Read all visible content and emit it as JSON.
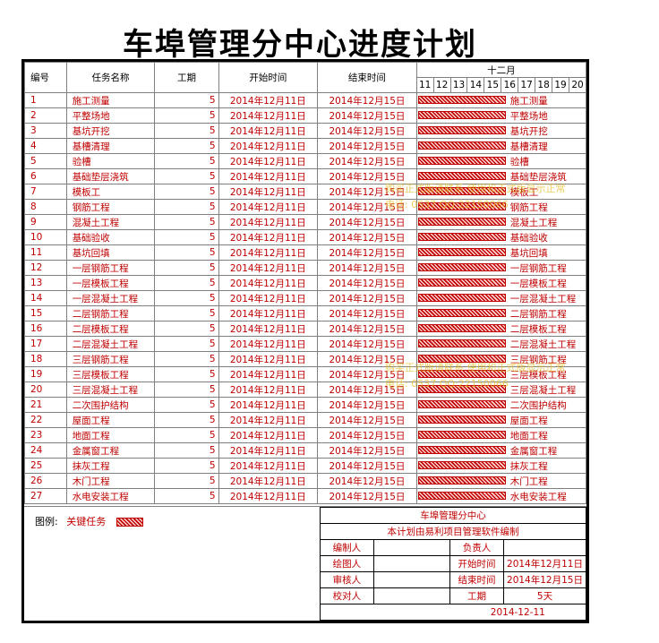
{
  "title": "车埠管理分中心进度计划",
  "table": {
    "headers": {
      "no": "编号",
      "name": "任务名称",
      "duration": "工期",
      "start": "开始时间",
      "end": "结束时间",
      "month": "十二月",
      "days": [
        "11",
        "12",
        "13",
        "14",
        "15",
        "16",
        "17",
        "18",
        "19",
        "20"
      ]
    },
    "rows": [
      {
        "no": "1",
        "name": "施工测量",
        "duration": "5",
        "start": "2014年12月11日",
        "end": "2014年12月15日",
        "label": "施工测量"
      },
      {
        "no": "2",
        "name": "平整场地",
        "duration": "5",
        "start": "2014年12月11日",
        "end": "2014年12月15日",
        "label": "平整场地"
      },
      {
        "no": "3",
        "name": "基坑开挖",
        "duration": "5",
        "start": "2014年12月11日",
        "end": "2014年12月15日",
        "label": "基坑开挖"
      },
      {
        "no": "4",
        "name": "基槽清理",
        "duration": "5",
        "start": "2014年12月11日",
        "end": "2014年12月15日",
        "label": "基槽清理"
      },
      {
        "no": "5",
        "name": "验槽",
        "duration": "5",
        "start": "2014年12月11日",
        "end": "2014年12月15日",
        "label": "验槽"
      },
      {
        "no": "6",
        "name": "基础垫层浇筑",
        "duration": "5",
        "start": "2014年12月11日",
        "end": "2014年12月15日",
        "label": "基础垫层浇筑"
      },
      {
        "no": "7",
        "name": "模板工",
        "duration": "5",
        "start": "2014年12月11日",
        "end": "2014年12月15日",
        "label": "模板工"
      },
      {
        "no": "8",
        "name": "钢筋工程",
        "duration": "5",
        "start": "2014年12月11日",
        "end": "2014年12月15日",
        "label": "钢筋工程"
      },
      {
        "no": "9",
        "name": "混凝土工程",
        "duration": "5",
        "start": "2014年12月11日",
        "end": "2014年12月15日",
        "label": "混凝土工程"
      },
      {
        "no": "10",
        "name": "基础验收",
        "duration": "5",
        "start": "2014年12月11日",
        "end": "2014年12月15日",
        "label": "基础验收"
      },
      {
        "no": "11",
        "name": "基坑回填",
        "duration": "5",
        "start": "2014年12月11日",
        "end": "2014年12月15日",
        "label": "基坑回填"
      },
      {
        "no": "12",
        "name": "一层钢筋工程",
        "duration": "5",
        "start": "2014年12月11日",
        "end": "2014年12月15日",
        "label": "一层钢筋工程"
      },
      {
        "no": "13",
        "name": "一层模板工程",
        "duration": "5",
        "start": "2014年12月11日",
        "end": "2014年12月15日",
        "label": "一层模板工程"
      },
      {
        "no": "14",
        "name": "一层混凝土工程",
        "duration": "5",
        "start": "2014年12月11日",
        "end": "2014年12月15日",
        "label": "一层混凝土工程"
      },
      {
        "no": "15",
        "name": "二层钢筋工程",
        "duration": "5",
        "start": "2014年12月11日",
        "end": "2014年12月15日",
        "label": "二层钢筋工程"
      },
      {
        "no": "16",
        "name": "二层模板工程",
        "duration": "5",
        "start": "2014年12月11日",
        "end": "2014年12月15日",
        "label": "二层模板工程"
      },
      {
        "no": "17",
        "name": "二层混凝土工程",
        "duration": "5",
        "start": "2014年12月11日",
        "end": "2014年12月15日",
        "label": "二层混凝土工程"
      },
      {
        "no": "18",
        "name": "三层钢筋工程",
        "duration": "5",
        "start": "2014年12月11日",
        "end": "2014年12月15日",
        "label": "三层钢筋工程"
      },
      {
        "no": "19",
        "name": "三层模板工程",
        "duration": "5",
        "start": "2014年12月11日",
        "end": "2014年12月15日",
        "label": "三层模板工程"
      },
      {
        "no": "20",
        "name": "三层混凝土工程",
        "duration": "5",
        "start": "2014年12月11日",
        "end": "2014年12月15日",
        "label": "三层混凝土工程"
      },
      {
        "no": "21",
        "name": "二次围护结构",
        "duration": "5",
        "start": "2014年12月11日",
        "end": "2014年12月15日",
        "label": "二次围护结构"
      },
      {
        "no": "22",
        "name": "屋面工程",
        "duration": "5",
        "start": "2014年12月11日",
        "end": "2014年12月15日",
        "label": "屋面工程"
      },
      {
        "no": "23",
        "name": "地面工程",
        "duration": "5",
        "start": "2014年12月11日",
        "end": "2014年12月15日",
        "label": "地面工程"
      },
      {
        "no": "24",
        "name": "金属窗工程",
        "duration": "5",
        "start": "2014年12月11日",
        "end": "2014年12月15日",
        "label": "金属窗工程"
      },
      {
        "no": "25",
        "name": "抹灰工程",
        "duration": "5",
        "start": "2014年12月11日",
        "end": "2014年12月15日",
        "label": "抹灰工程"
      },
      {
        "no": "26",
        "name": "木门工程",
        "duration": "5",
        "start": "2014年12月11日",
        "end": "2014年12月15日",
        "label": "木门工程"
      },
      {
        "no": "27",
        "name": "水电安装工程",
        "duration": "5",
        "start": "2014年12月11日",
        "end": "2014年12月15日",
        "label": "水电安装工程"
      }
    ]
  },
  "legend": {
    "prefix": "图例:",
    "label": "关键任务"
  },
  "info": {
    "org": "车埠管理分中心",
    "note": "本计划由易利项目管理软件编制",
    "compiler_label": "编制人",
    "owner_label": "负责人",
    "drawer_label": "绘图人",
    "start_label": "开始时间",
    "start_value": "2014年12月11日",
    "reviewer_label": "审核人",
    "end_label": "结束时间",
    "end_value": "2014年12月15日",
    "proofreader_label": "校对人",
    "duration_label": "工期",
    "duration_value": "5天",
    "date": "2014-12-11"
  },
  "watermarks": [
    "购买正式版请联系 使用和正式版显示正常",
    "电话: 0537 QQ:22150066"
  ],
  "colors": {
    "critical": "#c00000",
    "watermark": "#e6be28"
  }
}
